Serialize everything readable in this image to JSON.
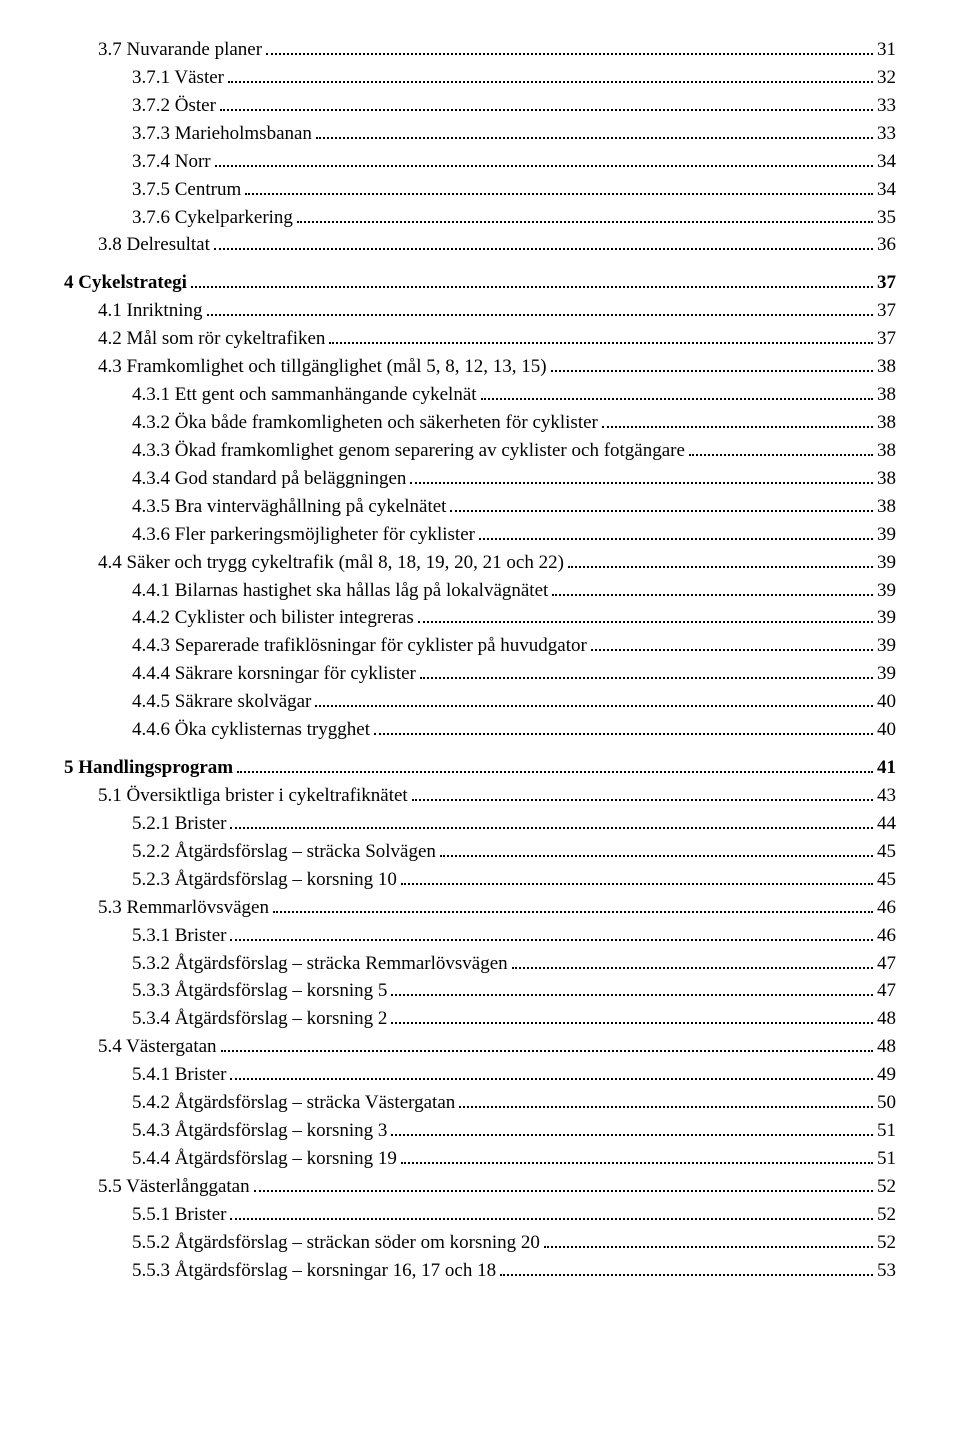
{
  "toc": [
    {
      "level": 1,
      "label": "3.7 Nuvarande planer",
      "page": "31"
    },
    {
      "level": 2,
      "label": "3.7.1 Väster",
      "page": "32"
    },
    {
      "level": 2,
      "label": "3.7.2 Öster",
      "page": "33"
    },
    {
      "level": 2,
      "label": "3.7.3 Marieholmsbanan",
      "page": "33"
    },
    {
      "level": 2,
      "label": "3.7.4 Norr",
      "page": "34"
    },
    {
      "level": 2,
      "label": "3.7.5 Centrum",
      "page": "34"
    },
    {
      "level": 2,
      "label": "3.7.6 Cykelparkering",
      "page": "35"
    },
    {
      "level": 1,
      "label": "3.8 Delresultat",
      "page": "36"
    },
    {
      "spacer": true
    },
    {
      "level": 0,
      "label": "4 Cykelstrategi",
      "page": "37"
    },
    {
      "level": 1,
      "label": "4.1 Inriktning",
      "page": "37"
    },
    {
      "level": 1,
      "label": "4.2 Mål som rör cykeltrafiken",
      "page": "37"
    },
    {
      "level": 1,
      "label": "4.3 Framkomlighet och tillgänglighet (mål 5, 8, 12, 13, 15)",
      "page": "38"
    },
    {
      "level": 2,
      "label": "4.3.1 Ett gent och sammanhängande cykelnät",
      "page": "38"
    },
    {
      "level": 2,
      "label": "4.3.2 Öka både framkomligheten och säkerheten för cyklister",
      "page": "38"
    },
    {
      "level": 2,
      "label": "4.3.3 Ökad framkomlighet genom separering av cyklister och fotgängare",
      "page": "38"
    },
    {
      "level": 2,
      "label": "4.3.4 God standard på beläggningen",
      "page": "38"
    },
    {
      "level": 2,
      "label": "4.3.5 Bra vinterväghållning på cykelnätet",
      "page": "38"
    },
    {
      "level": 2,
      "label": "4.3.6 Fler parkeringsmöjligheter för cyklister",
      "page": "39"
    },
    {
      "level": 1,
      "label": "4.4 Säker och trygg cykeltrafik (mål 8, 18, 19, 20, 21 och 22)",
      "page": "39"
    },
    {
      "level": 2,
      "label": "4.4.1 Bilarnas hastighet ska hållas låg på lokalvägnätet",
      "page": "39"
    },
    {
      "level": 2,
      "label": "4.4.2 Cyklister och bilister integreras",
      "page": "39"
    },
    {
      "level": 2,
      "label": "4.4.3 Separerade trafiklösningar för cyklister på huvudgator",
      "page": "39"
    },
    {
      "level": 2,
      "label": "4.4.4 Säkrare korsningar för cyklister",
      "page": "39"
    },
    {
      "level": 2,
      "label": "4.4.5 Säkrare skolvägar",
      "page": "40"
    },
    {
      "level": 2,
      "label": "4.4.6 Öka cyklisternas trygghet",
      "page": "40"
    },
    {
      "spacer": true
    },
    {
      "level": 0,
      "label": "5 Handlingsprogram",
      "page": "41"
    },
    {
      "level": 1,
      "label": "5.1 Översiktliga brister i cykeltrafiknätet",
      "page": "43"
    },
    {
      "level": 2,
      "label": "5.2.1 Brister",
      "page": "44"
    },
    {
      "level": 2,
      "label": "5.2.2 Åtgärdsförslag – sträcka Solvägen",
      "page": "45"
    },
    {
      "level": 2,
      "label": "5.2.3 Åtgärdsförslag – korsning 10",
      "page": "45"
    },
    {
      "level": 1,
      "label": "5.3 Remmarlövsvägen",
      "page": "46"
    },
    {
      "level": 2,
      "label": "5.3.1 Brister",
      "page": "46"
    },
    {
      "level": 2,
      "label": "5.3.2 Åtgärdsförslag – sträcka Remmarlövsvägen",
      "page": "47"
    },
    {
      "level": 2,
      "label": "5.3.3 Åtgärdsförslag – korsning 5",
      "page": "47"
    },
    {
      "level": 2,
      "label": "5.3.4 Åtgärdsförslag – korsning 2",
      "page": "48"
    },
    {
      "level": 1,
      "label": "5.4 Västergatan",
      "page": "48"
    },
    {
      "level": 2,
      "label": "5.4.1 Brister",
      "page": "49"
    },
    {
      "level": 2,
      "label": "5.4.2 Åtgärdsförslag – sträcka Västergatan",
      "page": "50"
    },
    {
      "level": 2,
      "label": "5.4.3 Åtgärdsförslag – korsning 3",
      "page": "51"
    },
    {
      "level": 2,
      "label": "5.4.4 Åtgärdsförslag – korsning 19",
      "page": "51"
    },
    {
      "level": 1,
      "label": "5.5 Västerlånggatan",
      "page": "52"
    },
    {
      "level": 2,
      "label": "5.5.1 Brister",
      "page": "52"
    },
    {
      "level": 2,
      "label": "5.5.2 Åtgärdsförslag – sträckan söder om korsning 20",
      "page": "52"
    },
    {
      "level": 2,
      "label": "5.5.3 Åtgärdsförslag – korsningar 16, 17 och 18",
      "page": "53"
    }
  ]
}
